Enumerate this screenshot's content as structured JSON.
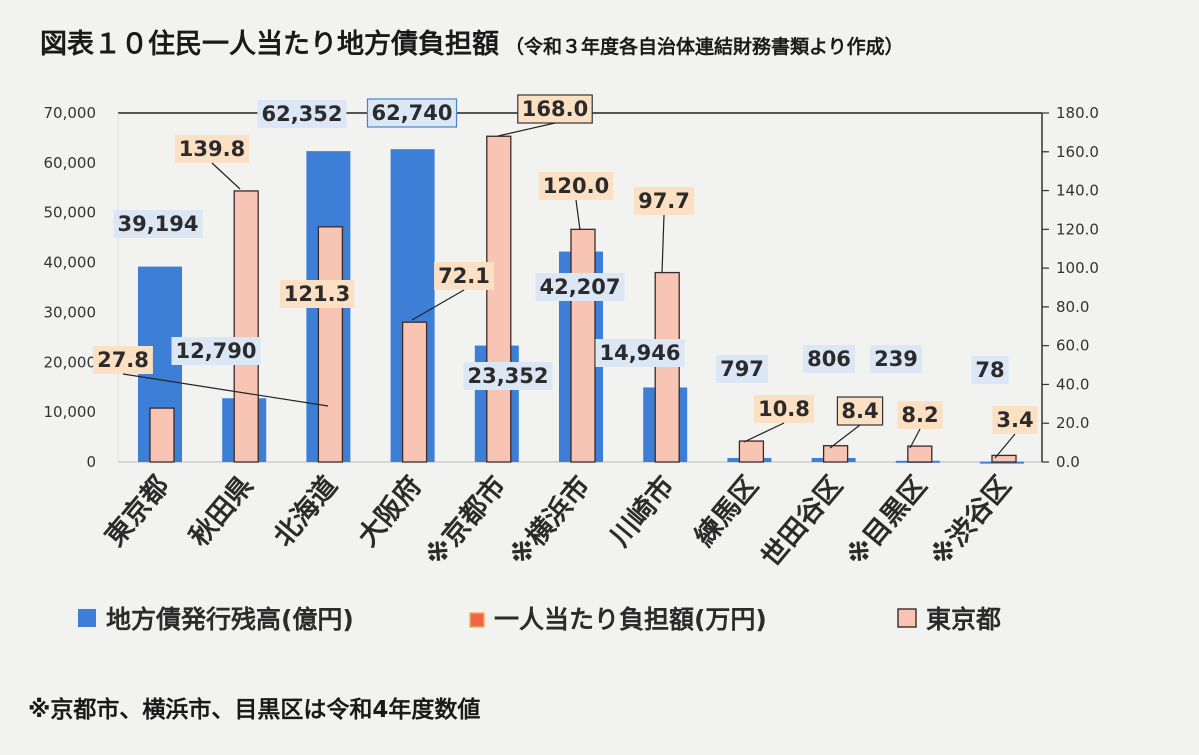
{
  "header": {
    "title": "図表１０住民一人当たり地方債負担額",
    "subtitle": "（令和３年度各自治体連結財務書類より作成）"
  },
  "footnote": "※京都市、横浜市、目黒区は令和4年度数値",
  "colors": {
    "bar_blue": "#3d7fd6",
    "bar_pink": "#f8c4b4",
    "bar_pink_edge": "#3a2a28",
    "label_blue_bg": "#dbe7f5",
    "label_orange_bg": "#fbe0c3",
    "legend_red": "#f06448"
  },
  "chart_data": {
    "type": "bar",
    "categories": [
      "東京都",
      "秋田県",
      "北海道",
      "大阪府",
      "※京都市",
      "※横浜市",
      "川崎市",
      "練馬区",
      "世田谷区",
      "※目黒区",
      "※渋谷区"
    ],
    "series": [
      {
        "name": "地方債発行残高(億円)",
        "axis": "left",
        "values": [
          39194,
          12790,
          62352,
          62740,
          23352,
          42207,
          14946,
          797,
          806,
          239,
          78
        ],
        "labels": [
          "39,194",
          "12,790",
          "62,352",
          "62,740",
          "23,352",
          "42,207",
          "14,946",
          "797",
          "806",
          "239",
          "78"
        ]
      },
      {
        "name": "一人当たり負担額(万円)",
        "axis": "right",
        "values": [
          27.8,
          139.8,
          121.3,
          72.1,
          168.0,
          120.0,
          97.7,
          10.8,
          8.4,
          8.2,
          3.4
        ],
        "labels": [
          "27.8",
          "139.8",
          "121.3",
          "72.1",
          "168.0",
          "120.0",
          "97.7",
          "10.8",
          "8.4",
          "8.2",
          "3.4"
        ]
      }
    ],
    "legend": [
      "地方債発行残高(億円)",
      "一人当たり負担額(万円)",
      "東京都"
    ],
    "y_left": {
      "ylim": [
        0,
        70000
      ],
      "ticks": [
        "0",
        "10,000",
        "20,000",
        "30,000",
        "40,000",
        "50,000",
        "60,000",
        "70,000"
      ]
    },
    "y_right": {
      "ylim": [
        0,
        180
      ],
      "ticks": [
        "0.0",
        "20.0",
        "40.0",
        "60.0",
        "80.0",
        "100.0",
        "120.0",
        "140.0",
        "160.0",
        "180.0"
      ]
    },
    "grid": false,
    "legend_position": "bottom"
  }
}
